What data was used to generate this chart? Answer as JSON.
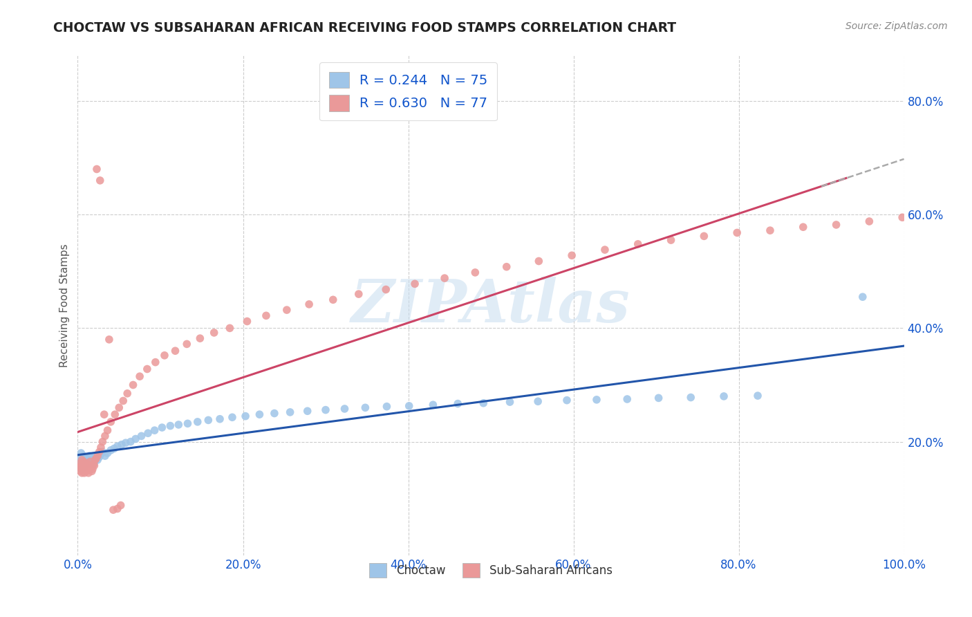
{
  "title": "CHOCTAW VS SUBSAHARAN AFRICAN RECEIVING FOOD STAMPS CORRELATION CHART",
  "source": "Source: ZipAtlas.com",
  "ylabel": "Receiving Food Stamps",
  "xlim": [
    0.0,
    1.0
  ],
  "ylim": [
    0.0,
    0.88
  ],
  "xticks": [
    0.0,
    0.2,
    0.4,
    0.6,
    0.8,
    1.0
  ],
  "xtick_labels": [
    "0.0%",
    "20.0%",
    "40.0%",
    "60.0%",
    "80.0%",
    "100.0%"
  ],
  "ytick_right": [
    0.2,
    0.4,
    0.6,
    0.8
  ],
  "ytick_right_labels": [
    "20.0%",
    "40.0%",
    "60.0%",
    "80.0%"
  ],
  "choctaw_color": "#9fc5e8",
  "subsaharan_color": "#ea9999",
  "trend_blue": "#2255aa",
  "trend_pink": "#cc4466",
  "trend_gray": "#aaaaaa",
  "choctaw_R": 0.244,
  "choctaw_N": 75,
  "subsaharan_R": 0.63,
  "subsaharan_N": 77,
  "legend_label_choctaw": "Choctaw",
  "legend_label_subsaharan": "Sub-Saharan Africans",
  "watermark": "ZIPAtlas",
  "title_color": "#222222",
  "axis_color": "#1155cc",
  "grid_color": "#cccccc",
  "choctaw_x": [
    0.002,
    0.003,
    0.003,
    0.004,
    0.004,
    0.005,
    0.005,
    0.006,
    0.006,
    0.007,
    0.007,
    0.008,
    0.008,
    0.009,
    0.009,
    0.01,
    0.01,
    0.011,
    0.012,
    0.013,
    0.014,
    0.015,
    0.016,
    0.017,
    0.018,
    0.019,
    0.02,
    0.022,
    0.024,
    0.026,
    0.028,
    0.03,
    0.033,
    0.036,
    0.04,
    0.044,
    0.048,
    0.053,
    0.058,
    0.064,
    0.07,
    0.077,
    0.085,
    0.093,
    0.102,
    0.112,
    0.122,
    0.133,
    0.145,
    0.158,
    0.172,
    0.187,
    0.203,
    0.22,
    0.238,
    0.257,
    0.278,
    0.3,
    0.323,
    0.348,
    0.374,
    0.401,
    0.43,
    0.46,
    0.491,
    0.523,
    0.557,
    0.592,
    0.628,
    0.665,
    0.703,
    0.742,
    0.782,
    0.823,
    0.95
  ],
  "choctaw_y": [
    0.165,
    0.158,
    0.172,
    0.152,
    0.18,
    0.16,
    0.155,
    0.162,
    0.17,
    0.158,
    0.175,
    0.163,
    0.155,
    0.17,
    0.16,
    0.158,
    0.165,
    0.172,
    0.168,
    0.163,
    0.175,
    0.17,
    0.165,
    0.16,
    0.168,
    0.172,
    0.163,
    0.175,
    0.168,
    0.173,
    0.178,
    0.182,
    0.175,
    0.18,
    0.185,
    0.188,
    0.192,
    0.195,
    0.198,
    0.2,
    0.205,
    0.21,
    0.215,
    0.22,
    0.225,
    0.228,
    0.23,
    0.232,
    0.235,
    0.238,
    0.24,
    0.243,
    0.245,
    0.248,
    0.25,
    0.252,
    0.254,
    0.256,
    0.258,
    0.26,
    0.262,
    0.263,
    0.265,
    0.267,
    0.268,
    0.27,
    0.271,
    0.273,
    0.274,
    0.275,
    0.277,
    0.278,
    0.28,
    0.281,
    0.455
  ],
  "subsaharan_x": [
    0.002,
    0.003,
    0.003,
    0.004,
    0.005,
    0.005,
    0.006,
    0.007,
    0.007,
    0.008,
    0.008,
    0.009,
    0.01,
    0.01,
    0.011,
    0.012,
    0.013,
    0.014,
    0.015,
    0.016,
    0.017,
    0.018,
    0.019,
    0.02,
    0.021,
    0.022,
    0.024,
    0.026,
    0.028,
    0.03,
    0.033,
    0.036,
    0.04,
    0.045,
    0.05,
    0.055,
    0.06,
    0.067,
    0.075,
    0.084,
    0.094,
    0.105,
    0.118,
    0.132,
    0.148,
    0.165,
    0.184,
    0.205,
    0.228,
    0.253,
    0.28,
    0.309,
    0.34,
    0.373,
    0.408,
    0.444,
    0.481,
    0.519,
    0.558,
    0.598,
    0.638,
    0.678,
    0.718,
    0.758,
    0.798,
    0.838,
    0.878,
    0.918,
    0.958,
    0.998,
    0.023,
    0.027,
    0.032,
    0.038,
    0.043,
    0.048,
    0.052
  ],
  "subsaharan_y": [
    0.155,
    0.148,
    0.162,
    0.158,
    0.145,
    0.168,
    0.155,
    0.152,
    0.165,
    0.145,
    0.16,
    0.15,
    0.148,
    0.155,
    0.162,
    0.15,
    0.145,
    0.158,
    0.165,
    0.155,
    0.148,
    0.152,
    0.16,
    0.158,
    0.168,
    0.17,
    0.175,
    0.182,
    0.19,
    0.2,
    0.21,
    0.22,
    0.235,
    0.248,
    0.26,
    0.272,
    0.285,
    0.3,
    0.315,
    0.328,
    0.34,
    0.352,
    0.36,
    0.372,
    0.382,
    0.392,
    0.4,
    0.412,
    0.422,
    0.432,
    0.442,
    0.45,
    0.46,
    0.468,
    0.478,
    0.488,
    0.498,
    0.508,
    0.518,
    0.528,
    0.538,
    0.548,
    0.555,
    0.562,
    0.568,
    0.572,
    0.578,
    0.582,
    0.588,
    0.595,
    0.68,
    0.66,
    0.248,
    0.38,
    0.08,
    0.082,
    0.088
  ]
}
